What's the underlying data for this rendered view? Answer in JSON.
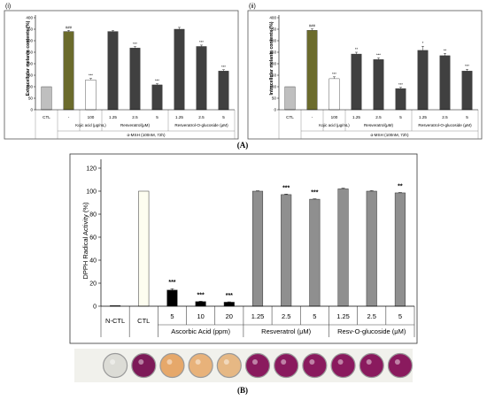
{
  "panel_labels": {
    "a": "(A)",
    "b": "(B)"
  },
  "chart_data": [
    {
      "type": "bar",
      "panel": "(i)",
      "ylabel": "Extracellular melanin contents (%)",
      "ylim": [
        0,
        400
      ],
      "yticks": [
        0,
        50,
        100,
        150,
        200,
        250,
        300,
        350,
        400
      ],
      "grid": false,
      "categories": [
        "CTL",
        "-",
        "100",
        "1.25",
        "2.5",
        "5",
        "1.25",
        "2.5",
        "5"
      ],
      "values": [
        100,
        340,
        130,
        340,
        268,
        108,
        350,
        275,
        168
      ],
      "errors": [
        0,
        5,
        6,
        4,
        6,
        5,
        8,
        6,
        6
      ],
      "significance": [
        "",
        "###",
        "***",
        "",
        "***",
        "***",
        "",
        "***",
        "***"
      ],
      "colors": [
        "#bfbfbf",
        "#6b6b2c",
        "#ffffff",
        "#404040",
        "#404040",
        "#404040",
        "#404040",
        "#404040",
        "#404040"
      ],
      "group_labels": [
        "Kojic acid (μg/mL)",
        "Resveratrol(μM)",
        "Resveratrol-O-glucoside (μM)"
      ],
      "condition_label": "α-MSH (100nM, 72h)"
    },
    {
      "type": "bar",
      "panel": "(ii)",
      "ylabel": "Intracellular melanin contents (%)",
      "ylim": [
        0,
        400
      ],
      "yticks": [
        0,
        50,
        100,
        150,
        200,
        250,
        300,
        350,
        400
      ],
      "grid": false,
      "categories": [
        "CTL",
        "-",
        "100",
        "1.25",
        "2.5",
        "5",
        "1.25",
        "2.5",
        "5"
      ],
      "values": [
        100,
        345,
        135,
        242,
        218,
        92,
        258,
        235,
        168
      ],
      "errors": [
        0,
        6,
        8,
        8,
        7,
        5,
        18,
        10,
        8
      ],
      "significance": [
        "",
        "###",
        "***",
        "**",
        "***",
        "***",
        "*",
        "**",
        "***"
      ],
      "colors": [
        "#bfbfbf",
        "#6b6b2c",
        "#ffffff",
        "#404040",
        "#404040",
        "#404040",
        "#404040",
        "#404040",
        "#404040"
      ],
      "group_labels": [
        "Kojic acid (μg/mL)",
        "Resveratrol(μM)",
        "Resveratrol-O-glucoside (μM)"
      ],
      "condition_label": "α-MSH (100nM, 72h)"
    },
    {
      "type": "bar",
      "panel": "(B)",
      "ylabel": "DPPH Radical Activity (%)",
      "ylim": [
        0,
        120
      ],
      "yticks": [
        0,
        20,
        40,
        60,
        80,
        100,
        120
      ],
      "grid": false,
      "categories": [
        "N-CTL",
        "CTL",
        "5",
        "10",
        "20",
        "1.25",
        "2.5",
        "5",
        "1.25",
        "2.5",
        "5"
      ],
      "values": [
        0.5,
        100,
        14,
        4,
        3.5,
        100,
        97,
        93,
        102,
        100,
        98.5
      ],
      "errors": [
        0,
        0,
        1.2,
        0.3,
        0.3,
        0.3,
        0.4,
        0.3,
        0.5,
        0.4,
        0.3
      ],
      "significance": [
        "",
        "",
        "***",
        "***",
        "***",
        "",
        "***",
        "***",
        "",
        "",
        "**"
      ],
      "colors": [
        "#000000",
        "#fdfdf0",
        "#000000",
        "#000000",
        "#000000",
        "#8f8f8f",
        "#8f8f8f",
        "#8f8f8f",
        "#8f8f8f",
        "#8f8f8f",
        "#8f8f8f"
      ],
      "group_labels": [
        "Ascorbic Acid (ppm)",
        "Resveratrol (μM)",
        "Resv-O-glucoside (μM)"
      ],
      "well_colors": [
        "#dcdcd6",
        "#7d1a58",
        "#e6a86a",
        "#e8b27a",
        "#e6b884",
        "#8a1a5e",
        "#8a1a5e",
        "#8a1a5e",
        "#8a1a5e",
        "#8a1a5e",
        "#8a1a5e"
      ]
    }
  ]
}
